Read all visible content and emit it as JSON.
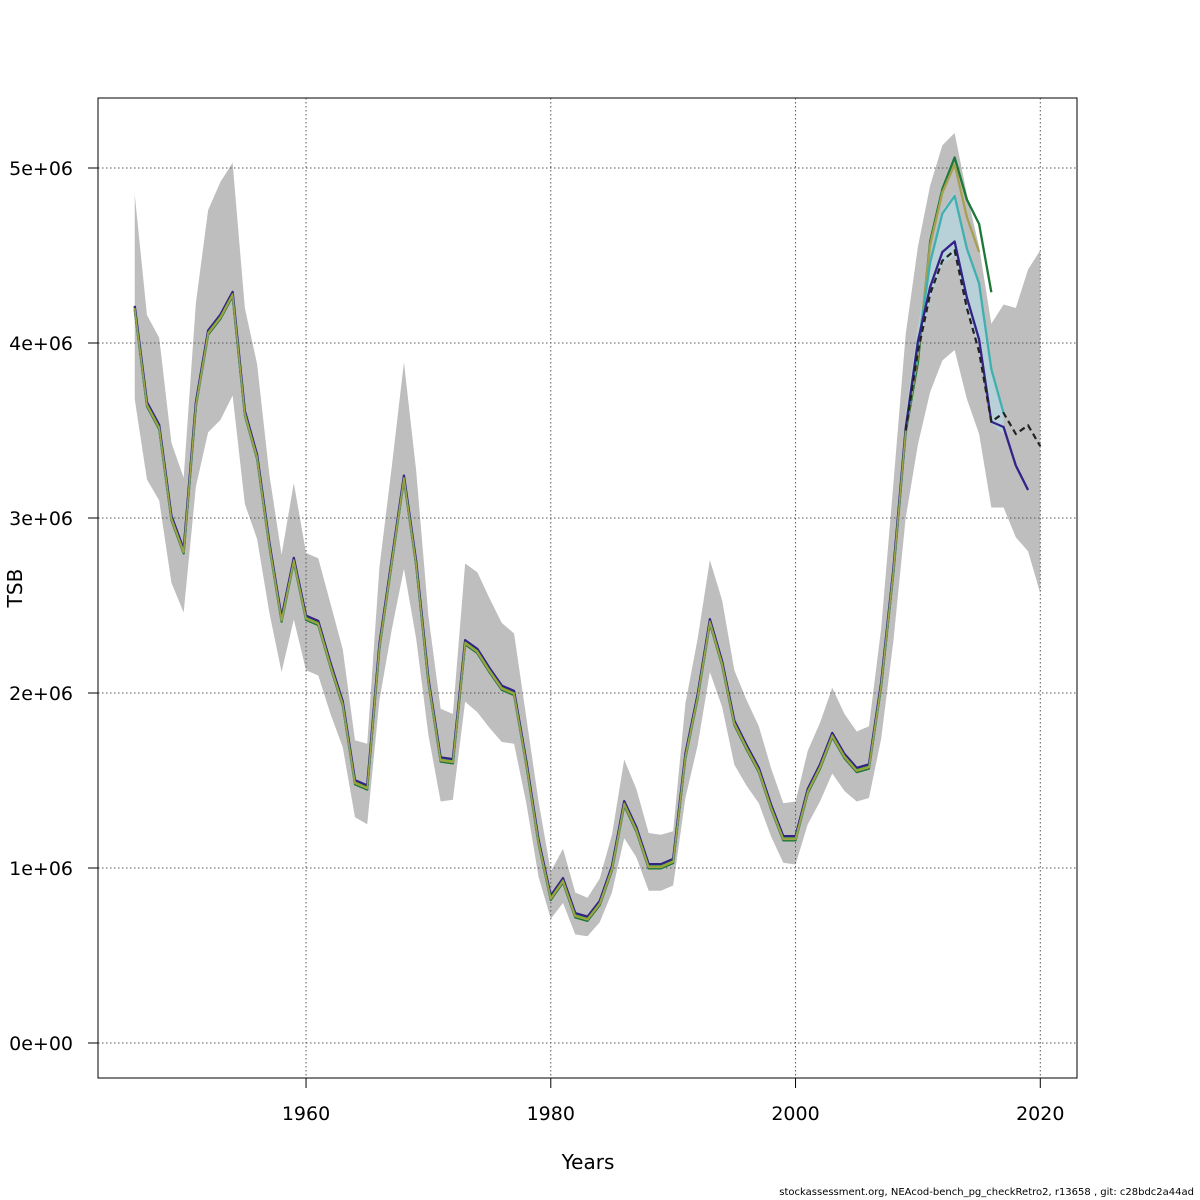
{
  "chart_data": {
    "type": "line",
    "title": "",
    "xlabel": "Years",
    "ylabel": "TSB",
    "xlim": [
      1943,
      2023
    ],
    "ylim": [
      -200000,
      5400000
    ],
    "grid": true,
    "legend": "none",
    "x_ticks": [
      1960,
      1980,
      2000,
      2020
    ],
    "x_tick_labels": [
      "1960",
      "1980",
      "2000",
      "2020"
    ],
    "y_ticks": [
      0,
      1000000,
      2000000,
      3000000,
      4000000,
      5000000
    ],
    "y_tick_labels": [
      "0e+00",
      "1e+06",
      "2e+06",
      "3e+06",
      "4e+06",
      "5e+06"
    ],
    "years": [
      1946,
      1947,
      1948,
      1949,
      1950,
      1951,
      1952,
      1953,
      1954,
      1955,
      1956,
      1957,
      1958,
      1959,
      1960,
      1961,
      1962,
      1963,
      1964,
      1965,
      1966,
      1967,
      1968,
      1969,
      1970,
      1971,
      1972,
      1973,
      1974,
      1975,
      1976,
      1977,
      1978,
      1979,
      1980,
      1981,
      1982,
      1983,
      1984,
      1985,
      1986,
      1987,
      1988,
      1989,
      1990,
      1991,
      1992,
      1993,
      1994,
      1995,
      1996,
      1997,
      1998,
      1999,
      2000,
      2001,
      2002,
      2003,
      2004,
      2005,
      2006,
      2007,
      2008,
      2009,
      2010,
      2011,
      2012,
      2013,
      2014,
      2015,
      2016,
      2017,
      2018,
      2019,
      2020
    ],
    "estimate": [
      4200000,
      3650000,
      3520000,
      3000000,
      2810000,
      3650000,
      4060000,
      4150000,
      4280000,
      3600000,
      3350000,
      2850000,
      2420000,
      2760000,
      2430000,
      2400000,
      2160000,
      1940000,
      1490000,
      1460000,
      2270000,
      2750000,
      3230000,
      2740000,
      2070000,
      1620000,
      1610000,
      2290000,
      2240000,
      2130000,
      2030000,
      2000000,
      1600000,
      1150000,
      830000,
      930000,
      730000,
      710000,
      800000,
      1000000,
      1370000,
      1220000,
      1010000,
      1010000,
      1040000,
      1640000,
      1980000,
      2410000,
      2170000,
      1830000,
      1690000,
      1560000,
      1350000,
      1170000,
      1170000,
      1440000,
      1580000,
      1760000,
      1640000,
      1560000,
      1580000,
      2050000,
      2700000,
      3500000,
      3950000,
      4280000,
      4470000,
      4530000,
      4200000,
      3950000,
      3550000,
      3600000,
      3480000,
      3530000,
      3410000
    ],
    "ci_lower": [
      3680000,
      3220000,
      3100000,
      2630000,
      2460000,
      3180000,
      3490000,
      3560000,
      3700000,
      3080000,
      2880000,
      2460000,
      2120000,
      2420000,
      2130000,
      2100000,
      1880000,
      1690000,
      1290000,
      1250000,
      1960000,
      2360000,
      2710000,
      2310000,
      1760000,
      1380000,
      1390000,
      1950000,
      1890000,
      1800000,
      1720000,
      1710000,
      1370000,
      950000,
      710000,
      800000,
      620000,
      610000,
      690000,
      860000,
      1170000,
      1060000,
      870000,
      870000,
      900000,
      1400000,
      1700000,
      2120000,
      1920000,
      1590000,
      1470000,
      1370000,
      1180000,
      1030000,
      1020000,
      1250000,
      1380000,
      1540000,
      1440000,
      1380000,
      1400000,
      1740000,
      2300000,
      3000000,
      3420000,
      3720000,
      3900000,
      3960000,
      3680000,
      3480000,
      3060000,
      3060000,
      2890000,
      2810000,
      2570000
    ],
    "ci_upper": [
      4850000,
      4160000,
      4030000,
      3430000,
      3230000,
      4230000,
      4760000,
      4920000,
      5030000,
      4200000,
      3880000,
      3250000,
      2790000,
      3200000,
      2800000,
      2770000,
      2510000,
      2250000,
      1730000,
      1710000,
      2720000,
      3290000,
      3890000,
      3270000,
      2440000,
      1910000,
      1880000,
      2740000,
      2690000,
      2540000,
      2400000,
      2340000,
      1860000,
      1380000,
      980000,
      1110000,
      860000,
      830000,
      940000,
      1190000,
      1620000,
      1450000,
      1200000,
      1190000,
      1210000,
      1940000,
      2310000,
      2760000,
      2530000,
      2130000,
      1960000,
      1810000,
      1570000,
      1370000,
      1380000,
      1670000,
      1830000,
      2030000,
      1880000,
      1780000,
      1810000,
      2370000,
      3200000,
      4050000,
      4550000,
      4900000,
      5130000,
      5200000,
      4850000,
      4550000,
      4110000,
      4220000,
      4200000,
      4420000,
      4530000
    ],
    "series": [
      {
        "name": "",
        "color": "#1b7837",
        "start": 1946,
        "end": 2016,
        "tail": [
          4580000,
          4880000,
          5060000,
          4820000,
          4680000,
          4290000
        ]
      },
      {
        "name": "",
        "color": "#a6a050",
        "start": 1946,
        "end": 2015,
        "tail": [
          4560000,
          4860000,
          5020000,
          4720000,
          4520000
        ]
      },
      {
        "name": "",
        "color": "#3fb0b0",
        "start": 1946,
        "end": 2017,
        "tail": [
          4460000,
          4740000,
          4840000,
          4540000,
          4340000,
          3850000,
          3600000
        ]
      },
      {
        "name": "",
        "color": "#332288",
        "start": 1946,
        "end": 2019,
        "tail": [
          4320000,
          4520000,
          4580000,
          4260000,
          4020000,
          3550000,
          3520000,
          3300000,
          3160000
        ]
      }
    ],
    "retro_color_lines": [
      "#1b7837",
      "#a6a050",
      "#3fb0b0",
      "#332288",
      "#7fb020"
    ]
  },
  "footer": "stockassessment.org, NEAcod-bench_pg_checkRetro2, r13658 , git: c28bdc2a44ad"
}
